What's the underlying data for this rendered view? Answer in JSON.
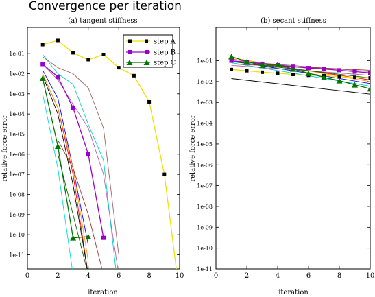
{
  "figure": {
    "title": "Convergence per iteration"
  },
  "chart_data": [
    {
      "type": "line",
      "title": "(a) tangent stiffness",
      "xlabel": "iteration",
      "ylabel": "relative force error",
      "xlim": [
        0,
        10
      ],
      "ylim_log10": [
        -11.7,
        0.3
      ],
      "xticks": [
        "0",
        "2",
        "4",
        "6",
        "8",
        "10"
      ],
      "yticks": [
        "1e-01",
        "1e-02",
        "1e-03",
        "1e-04",
        "1e-05",
        "1e-06",
        "1e-07",
        "1e-08",
        "1e-09",
        "1e-10",
        "1e-11"
      ],
      "y_scale": "log",
      "legend": "top-right",
      "series": [
        {
          "name": "step A",
          "color": "#f0e000",
          "marker": "square",
          "width": 1.3,
          "x": [
            1,
            2,
            3,
            4,
            5,
            6,
            7,
            8,
            9,
            10
          ],
          "y": [
            0.28,
            0.45,
            0.11,
            0.05,
            0.09,
            0.02,
            0.008,
            0.0004,
            1e-07,
            1e-13
          ]
        },
        {
          "name": "step B",
          "color": "#9900cc",
          "marker": "square",
          "width": 1.3,
          "x": [
            1,
            2,
            3,
            4,
            5
          ],
          "y": [
            0.03,
            0.007,
            0.0002,
            1e-06,
            7e-11
          ]
        },
        {
          "name": "step C",
          "color": "#007700",
          "marker": "triangle",
          "width": 1.3,
          "x": [
            1,
            2,
            3,
            4
          ],
          "y": [
            0.006,
            2.5e-06,
            7e-11,
            8e-11
          ]
        },
        {
          "color": "#ff0000",
          "x": [
            1,
            2,
            3,
            4
          ],
          "y": [
            0.01,
            0.0002,
            1e-07,
            1e-12
          ]
        },
        {
          "color": "#000000",
          "x": [
            1,
            2,
            3,
            4
          ],
          "y": [
            0.008,
            0.0001,
            3e-08,
            1e-12
          ]
        },
        {
          "color": "#0000ff",
          "x": [
            1,
            2,
            3,
            4
          ],
          "y": [
            0.015,
            0.0006,
            2e-07,
            3e-11
          ]
        },
        {
          "color": "#ff9900",
          "x": [
            1,
            2,
            3,
            4
          ],
          "y": [
            0.01,
            0.0002,
            2e-07,
            5e-12
          ]
        },
        {
          "color": "#aa66aa",
          "x": [
            1,
            2,
            3,
            4,
            5,
            6
          ],
          "y": [
            0.03,
            0.005,
            0.0003,
            2e-05,
            1e-07,
            1e-12
          ]
        },
        {
          "color": "#00cccc",
          "x": [
            1,
            2,
            3,
            4,
            5,
            6
          ],
          "y": [
            0.09,
            0.01,
            0.003,
            3e-05,
            5e-07,
            1e-13
          ]
        },
        {
          "color": "#00dddd",
          "x": [
            1,
            2,
            3
          ],
          "y": [
            0.001,
            2e-07,
            1e-12
          ]
        },
        {
          "color": "#996666",
          "x": [
            1,
            2,
            3,
            4,
            5,
            6
          ],
          "y": [
            0.07,
            0.02,
            0.01,
            0.002,
            2e-05,
            1e-11
          ]
        },
        {
          "color": "#006600",
          "x": [
            2,
            3,
            4
          ],
          "y": [
            1e-06,
            1e-09,
            1e-12
          ]
        },
        {
          "color": "#993333",
          "x": [
            2,
            3,
            4,
            5
          ],
          "y": [
            5e-06,
            2e-07,
            1e-09,
            1e-12
          ]
        }
      ]
    },
    {
      "type": "line",
      "title": "(b) secant stiffness",
      "xlabel": "iteration",
      "ylabel": "relative force error",
      "xlim": [
        0,
        10
      ],
      "ylim_log10": [
        -11,
        0.6
      ],
      "xticks": [
        "0",
        "2",
        "4",
        "6",
        "8",
        "10"
      ],
      "yticks": [
        "1e-01",
        "1e-02",
        "1e-03",
        "1e-04",
        "1e-05",
        "1e-06",
        "1e-07",
        "1e-08",
        "1e-09",
        "1e-10",
        "1e-11"
      ],
      "y_scale": "log",
      "series": [
        {
          "color": "#f0e000",
          "marker": "square",
          "width": 1.3,
          "x": [
            1,
            2,
            3,
            4,
            5,
            6,
            7,
            8,
            9,
            10
          ],
          "y": [
            0.038,
            0.033,
            0.028,
            0.025,
            0.022,
            0.02,
            0.019,
            0.017,
            0.016,
            0.015
          ]
        },
        {
          "color": "#9900cc",
          "marker": "square",
          "width": 1.3,
          "x": [
            1,
            2,
            3,
            4,
            5,
            6,
            7,
            8,
            9,
            10
          ],
          "y": [
            0.1,
            0.085,
            0.072,
            0.062,
            0.052,
            0.045,
            0.04,
            0.035,
            0.03,
            0.026
          ]
        },
        {
          "color": "#007700",
          "marker": "triangle",
          "width": 1.3,
          "x": [
            1,
            2,
            3,
            4,
            5,
            6,
            7,
            8,
            9,
            10
          ],
          "y": [
            0.16,
            0.09,
            0.06,
            0.065,
            0.04,
            0.025,
            0.016,
            0.011,
            0.007,
            0.0045
          ]
        },
        {
          "color": "#000000",
          "x": [
            1,
            10
          ],
          "y": [
            0.014,
            0.0025
          ]
        },
        {
          "color": "#ff0000",
          "x": [
            1,
            10
          ],
          "y": [
            0.12,
            0.012
          ]
        },
        {
          "color": "#0000ff",
          "x": [
            1,
            10
          ],
          "y": [
            0.1,
            0.008
          ]
        },
        {
          "color": "#ff9900",
          "x": [
            1,
            10
          ],
          "y": [
            0.14,
            0.01
          ]
        },
        {
          "color": "#00cccc",
          "x": [
            1,
            10
          ],
          "y": [
            0.08,
            0.006
          ]
        },
        {
          "color": "#aa66aa",
          "x": [
            1,
            10
          ],
          "y": [
            0.06,
            0.02
          ]
        },
        {
          "color": "#996666",
          "x": [
            1,
            10
          ],
          "y": [
            0.1,
            0.03
          ]
        },
        {
          "color": "#006600",
          "x": [
            1,
            10
          ],
          "y": [
            0.09,
            0.015
          ]
        },
        {
          "color": "#993333",
          "x": [
            1,
            10
          ],
          "y": [
            0.07,
            0.035
          ]
        }
      ]
    }
  ]
}
